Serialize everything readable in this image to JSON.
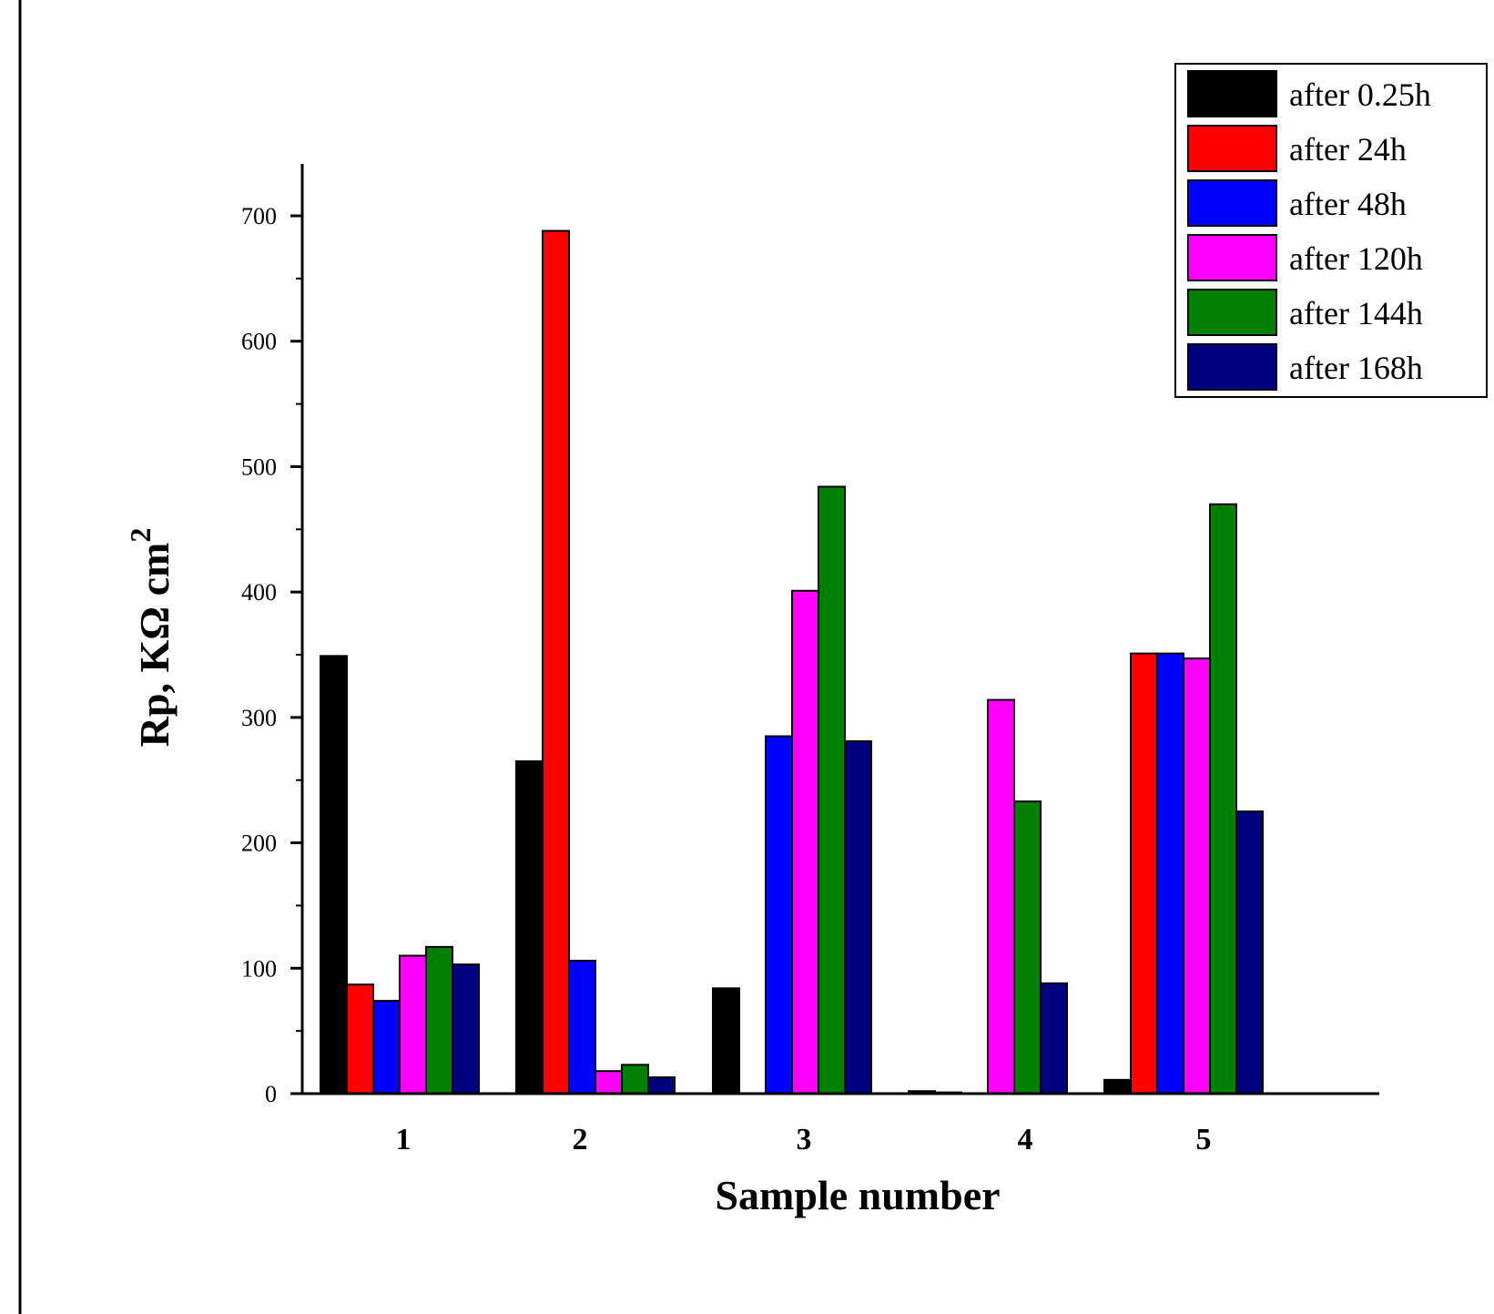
{
  "chart_data": {
    "type": "bar",
    "title": "",
    "xlabel": "Sample number",
    "ylabel": "Rp, KΩ cm",
    "ylabel_superscript": "2",
    "categories": [
      "1",
      "2",
      "3",
      "4",
      "5"
    ],
    "ylim": [
      0,
      740
    ],
    "yticks": [
      0,
      100,
      200,
      300,
      400,
      500,
      600,
      700
    ],
    "legend_position": "top-right",
    "series": [
      {
        "name": "after 0.25h",
        "color": "#000000",
        "values": [
          349,
          265,
          84,
          2,
          11
        ]
      },
      {
        "name": "after 24h",
        "color": "#ff0000",
        "values": [
          87,
          688,
          0,
          1,
          351
        ]
      },
      {
        "name": "after 48h",
        "color": "#0000ff",
        "values": [
          74,
          106,
          285,
          0,
          351
        ]
      },
      {
        "name": "after 120h",
        "color": "#ff00ff",
        "values": [
          110,
          18,
          401,
          314,
          347
        ]
      },
      {
        "name": "after 144h",
        "color": "#008000",
        "values": [
          117,
          23,
          484,
          233,
          470
        ]
      },
      {
        "name": "after 168h",
        "color": "#000080",
        "values": [
          103,
          13,
          281,
          88,
          225
        ]
      }
    ]
  }
}
